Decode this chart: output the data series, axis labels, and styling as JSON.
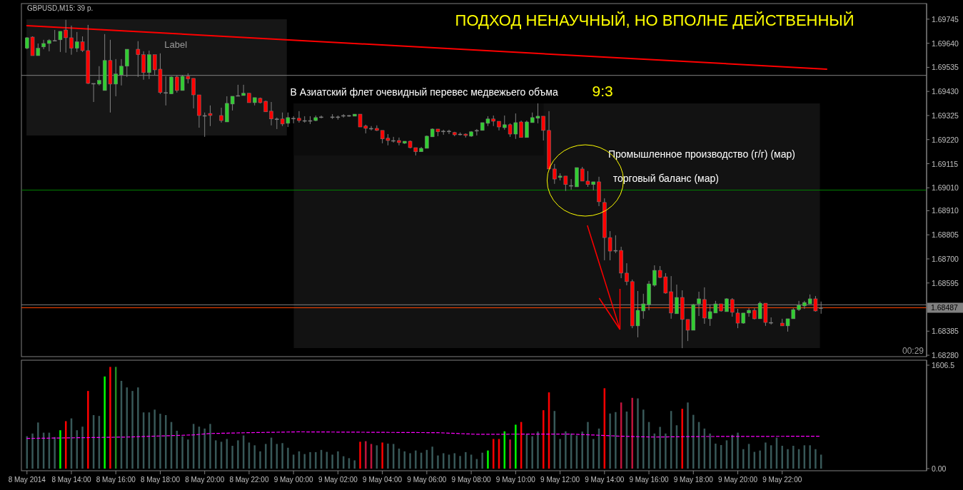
{
  "chart_data": [
    {
      "type": "candlestick",
      "title": "ПОДХОД НЕНАУЧНЫЙ, НО ВПОЛНЕ ДЕЙСТВЕННЫЙ",
      "subtitle": "GBPUSD,M15:  39 p.",
      "annotations": [
        "Label",
        "В Азиатский флет очевидный перевес медвежьего объма",
        "9:3",
        "Промышленное производство (г/г) (мар)",
        "торговый баланс (мар)",
        "00:29"
      ],
      "x": [
        "2014-05-08T12:00",
        "2014-05-08T12:15",
        "2014-05-08T12:30",
        "2014-05-08T12:45",
        "2014-05-08T13:00",
        "2014-05-08T13:15",
        "2014-05-08T13:30",
        "2014-05-08T13:45",
        "2014-05-08T14:00",
        "2014-05-08T14:15",
        "2014-05-08T14:30",
        "2014-05-08T14:45",
        "2014-05-08T15:00",
        "2014-05-08T15:15",
        "2014-05-08T15:30",
        "2014-05-08T15:45",
        "2014-05-08T16:00",
        "2014-05-08T16:15",
        "2014-05-08T16:30",
        "2014-05-08T17:00",
        "2014-05-08T17:15",
        "2014-05-08T17:30",
        "2014-05-08T17:45",
        "2014-05-08T18:00",
        "2014-05-08T18:15",
        "2014-05-08T18:30",
        "2014-05-08T18:45",
        "2014-05-08T19:00",
        "2014-05-08T19:15",
        "2014-05-08T19:30",
        "2014-05-08T19:45",
        "2014-05-08T20:00",
        "2014-05-08T20:15",
        "2014-05-08T20:45",
        "2014-05-08T21:00",
        "2014-05-08T21:15",
        "2014-05-08T21:30",
        "2014-05-08T21:45",
        "2014-05-08T22:00",
        "2014-05-08T22:15",
        "2014-05-08T22:30",
        "2014-05-08T22:45",
        "2014-05-08T23:00",
        "2014-05-08T23:15",
        "2014-05-08T23:30",
        "2014-05-08T23:45",
        "2014-05-09T00:00",
        "2014-05-09T00:15",
        "2014-05-09T00:30",
        "2014-05-09T00:45",
        "2014-05-09T01:00",
        "2014-05-09T01:15",
        "2014-05-09T01:45",
        "2014-05-09T02:00",
        "2014-05-09T02:15",
        "2014-05-09T02:30",
        "2014-05-09T02:45",
        "2014-05-09T03:00",
        "2014-05-09T03:15",
        "2014-05-09T03:30",
        "2014-05-09T03:45",
        "2014-05-09T04:00",
        "2014-05-09T04:15",
        "2014-05-09T04:30",
        "2014-05-09T04:45",
        "2014-05-09T05:00",
        "2014-05-09T05:15",
        "2014-05-09T05:30",
        "2014-05-09T05:45",
        "2014-05-09T06:00",
        "2014-05-09T06:15",
        "2014-05-09T06:30",
        "2014-05-09T06:45",
        "2014-05-09T07:00",
        "2014-05-09T07:15",
        "2014-05-09T07:30",
        "2014-05-09T07:45",
        "2014-05-09T08:00",
        "2014-05-09T08:15",
        "2014-05-09T08:30",
        "2014-05-09T08:45",
        "2014-05-09T09:00",
        "2014-05-09T09:15",
        "2014-05-09T09:30",
        "2014-05-09T09:45",
        "2014-05-09T10:00",
        "2014-05-09T10:15",
        "2014-05-09T10:30",
        "2014-05-09T10:45",
        "2014-05-09T11:00",
        "2014-05-09T11:15",
        "2014-05-09T11:30",
        "2014-05-09T11:45",
        "2014-05-09T12:00",
        "2014-05-09T12:15",
        "2014-05-09T12:30",
        "2014-05-09T12:45",
        "2014-05-09T13:00",
        "2014-05-09T13:15",
        "2014-05-09T13:30",
        "2014-05-09T13:45",
        "2014-05-09T14:00",
        "2014-05-09T14:15",
        "2014-05-09T14:30",
        "2014-05-09T14:45",
        "2014-05-09T15:00",
        "2014-05-09T15:15",
        "2014-05-09T15:30",
        "2014-05-09T15:45",
        "2014-05-09T16:00",
        "2014-05-09T16:15",
        "2014-05-09T16:30",
        "2014-05-09T16:45",
        "2014-05-09T17:00",
        "2014-05-09T17:15",
        "2014-05-09T17:30",
        "2014-05-09T17:45",
        "2014-05-09T18:00",
        "2014-05-09T18:15",
        "2014-05-09T18:30",
        "2014-05-09T18:45",
        "2014-05-09T19:00",
        "2014-05-09T19:15",
        "2014-05-09T19:30",
        "2014-05-09T19:45",
        "2014-05-09T20:00",
        "2014-05-09T20:15",
        "2014-05-09T20:30",
        "2014-05-09T20:45",
        "2014-05-09T21:00",
        "2014-05-09T21:15",
        "2014-05-09T21:30",
        "2014-05-09T22:00",
        "2014-05-09T22:15",
        "2014-05-09T22:30",
        "2014-05-09T22:45",
        "2014-05-09T23:00",
        "2014-05-09T23:15",
        "2014-05-09T23:30",
        "2014-05-09T23:45"
      ],
      "ohlc": [
        [
          1.69618,
          1.69667,
          1.69614,
          1.69664
        ],
        [
          1.69667,
          1.6967,
          1.69586,
          1.69586
        ],
        [
          1.69586,
          1.69639,
          1.69586,
          1.69618
        ],
        [
          1.69624,
          1.69655,
          1.69614,
          1.69639
        ],
        [
          1.69639,
          1.69658,
          1.69605,
          1.69652
        ],
        [
          1.69652,
          1.69698,
          1.69649,
          1.69652
        ],
        [
          1.69655,
          1.69692,
          1.69602,
          1.69692
        ],
        [
          1.69698,
          1.69742,
          1.69599,
          1.69664
        ],
        [
          1.69664,
          1.69717,
          1.6959,
          1.69618
        ],
        [
          1.69618,
          1.69689,
          1.69602,
          1.69646
        ],
        [
          1.69646,
          1.6967,
          1.69602,
          1.69608
        ],
        [
          1.69608,
          1.6972,
          1.69462,
          1.69465
        ],
        [
          1.69465,
          1.69465,
          1.69384,
          1.69465
        ],
        [
          1.69462,
          1.6954,
          1.69456,
          1.69478
        ],
        [
          1.69434,
          1.6968,
          1.69434,
          1.69565
        ],
        [
          1.69565,
          1.69655,
          1.69338,
          1.69462
        ],
        [
          1.69462,
          1.69571,
          1.69409,
          1.69506
        ],
        [
          1.69502,
          1.69571,
          1.69456,
          1.6954
        ],
        [
          1.6954,
          1.69614,
          1.69493,
          1.69614
        ],
        [
          1.69614,
          1.69649,
          1.69493,
          1.6959
        ],
        [
          1.6959,
          1.69605,
          1.69481,
          1.69512
        ],
        [
          1.69512,
          1.69608,
          1.69484,
          1.6959
        ],
        [
          1.6959,
          1.6959,
          1.69502,
          1.69524
        ],
        [
          1.69527,
          1.69596,
          1.69419,
          1.69425
        ],
        [
          1.69425,
          1.69496,
          1.69369,
          1.69425
        ],
        [
          1.69419,
          1.69496,
          1.69419,
          1.69493
        ],
        [
          1.69493,
          1.69499,
          1.69425,
          1.69434
        ],
        [
          1.69434,
          1.69502,
          1.69434,
          1.69496
        ],
        [
          1.69496,
          1.69509,
          1.69465,
          1.69484
        ],
        [
          1.69487,
          1.69487,
          1.69356,
          1.69415
        ],
        [
          1.69415,
          1.69415,
          1.69272,
          1.69325
        ],
        [
          1.69325,
          1.69338,
          1.69232,
          1.69325
        ],
        [
          1.69334,
          1.69369,
          1.69279,
          1.69325
        ],
        [
          1.69325,
          1.69359,
          1.69294,
          1.69303
        ],
        [
          1.69297,
          1.69409,
          1.69297,
          1.69378
        ],
        [
          1.69375,
          1.69409,
          1.69347,
          1.69409
        ],
        [
          1.69412,
          1.69459,
          1.69409,
          1.69412
        ],
        [
          1.69412,
          1.69459,
          1.69412,
          1.69422
        ],
        [
          1.69422,
          1.69422,
          1.69381,
          1.69381
        ],
        [
          1.69381,
          1.69403,
          1.69369,
          1.69403
        ],
        [
          1.694,
          1.69403,
          1.69378,
          1.69381
        ],
        [
          1.69387,
          1.6939,
          1.69341,
          1.69341
        ],
        [
          1.69344,
          1.69384,
          1.69282,
          1.6931
        ],
        [
          1.6931,
          1.69316,
          1.69266,
          1.6931
        ],
        [
          1.6931,
          1.69338,
          1.69279,
          1.69288
        ],
        [
          1.69291,
          1.69338,
          1.69275,
          1.69316
        ],
        [
          1.69313,
          1.69322,
          1.69291,
          1.69313
        ],
        [
          1.69313,
          1.69344,
          1.69294,
          1.69303
        ],
        [
          1.69303,
          1.69322,
          1.69294,
          1.69303
        ],
        [
          1.69303,
          1.69322,
          1.69288,
          1.69303
        ],
        [
          1.69303,
          1.69325,
          1.693,
          1.69316
        ],
        [
          1.69319,
          1.69325,
          1.69313,
          1.69319
        ],
        [
          1.69319,
          1.69331,
          1.6931,
          1.69319
        ],
        [
          1.69319,
          1.69325,
          1.69307,
          1.69319
        ],
        [
          1.69325,
          1.69331,
          1.69316,
          1.69325
        ],
        [
          1.69325,
          1.69328,
          1.69319,
          1.69325
        ],
        [
          1.69322,
          1.69331,
          1.69322,
          1.69331
        ],
        [
          1.69331,
          1.69331,
          1.69275,
          1.69275
        ],
        [
          1.69279,
          1.69285,
          1.69247,
          1.69269
        ],
        [
          1.69269,
          1.69279,
          1.6926,
          1.69269
        ],
        [
          1.69269,
          1.69282,
          1.69257,
          1.6926
        ],
        [
          1.6926,
          1.6926,
          1.69204,
          1.69223
        ],
        [
          1.69226,
          1.69244,
          1.69195,
          1.69216
        ],
        [
          1.69216,
          1.69232,
          1.69207,
          1.69216
        ],
        [
          1.69216,
          1.69229,
          1.69195,
          1.69207
        ],
        [
          1.69204,
          1.69213,
          1.69201,
          1.69213
        ],
        [
          1.69213,
          1.69216,
          1.69182,
          1.69185
        ],
        [
          1.69185,
          1.69185,
          1.69151,
          1.69167
        ],
        [
          1.69167,
          1.69188,
          1.69167,
          1.69182
        ],
        [
          1.69182,
          1.69238,
          1.69182,
          1.69235
        ],
        [
          1.69232,
          1.69269,
          1.69232,
          1.69266
        ],
        [
          1.69266,
          1.69266,
          1.69235,
          1.69254
        ],
        [
          1.69257,
          1.69263,
          1.69241,
          1.69257
        ],
        [
          1.69257,
          1.69263,
          1.69244,
          1.69257
        ],
        [
          1.69251,
          1.69254,
          1.69235,
          1.69241
        ],
        [
          1.69244,
          1.69251,
          1.69238,
          1.69244
        ],
        [
          1.69244,
          1.69247,
          1.69229,
          1.69238
        ],
        [
          1.69235,
          1.69257,
          1.69232,
          1.69254
        ],
        [
          1.6926,
          1.69266,
          1.69238,
          1.6926
        ],
        [
          1.6926,
          1.69294,
          1.6926,
          1.69294
        ],
        [
          1.69291,
          1.69322,
          1.69279,
          1.6931
        ],
        [
          1.6931,
          1.69325,
          1.69279,
          1.693
        ],
        [
          1.693,
          1.693,
          1.6926,
          1.69275
        ],
        [
          1.69272,
          1.69325,
          1.69263,
          1.69285
        ],
        [
          1.69285,
          1.69291,
          1.69232,
          1.69244
        ],
        [
          1.69244,
          1.69334,
          1.69223,
          1.69294
        ],
        [
          1.69297,
          1.69303,
          1.69229,
          1.69229
        ],
        [
          1.69229,
          1.69303,
          1.69229,
          1.69297
        ],
        [
          1.69294,
          1.69338,
          1.69294,
          1.69316
        ],
        [
          1.69313,
          1.69378,
          1.69291,
          1.69322
        ],
        [
          1.69322,
          1.69322,
          1.69216,
          1.6926
        ],
        [
          1.6926,
          1.69344,
          1.69092,
          1.69092
        ],
        [
          1.69092,
          1.69114,
          1.69027,
          1.69048
        ],
        [
          1.69055,
          1.69073,
          1.69042,
          1.69061
        ],
        [
          1.69061,
          1.69061,
          1.68996,
          1.69024
        ],
        [
          1.6902,
          1.69048,
          1.69002,
          1.6902
        ],
        [
          1.69014,
          1.69098,
          1.69014,
          1.69098
        ],
        [
          1.69092,
          1.69101,
          1.69039,
          1.69039
        ],
        [
          1.69039,
          1.69083,
          1.69014,
          1.69024
        ],
        [
          1.69024,
          1.69036,
          1.68999,
          1.69036
        ],
        [
          1.69036,
          1.69058,
          1.6893,
          1.68949
        ],
        [
          1.68946,
          1.68964,
          1.68694,
          1.68793
        ],
        [
          1.68793,
          1.68821,
          1.68694,
          1.68734
        ],
        [
          1.68737,
          1.68803,
          1.68725,
          1.68737
        ],
        [
          1.68737,
          1.68753,
          1.68616,
          1.68638
        ],
        [
          1.68638,
          1.68681,
          1.68585,
          1.68601
        ],
        [
          1.68601,
          1.6861,
          1.68398,
          1.68408
        ],
        [
          1.68408,
          1.6856,
          1.68358,
          1.68476
        ],
        [
          1.68473,
          1.68548,
          1.68439,
          1.68504
        ],
        [
          1.68501,
          1.68604,
          1.68476,
          1.68591
        ],
        [
          1.68585,
          1.68672,
          1.68579,
          1.6865
        ],
        [
          1.6865,
          1.68669,
          1.68616,
          1.68619
        ],
        [
          1.68622,
          1.68638,
          1.68548,
          1.68551
        ],
        [
          1.68557,
          1.68625,
          1.68439,
          1.68464
        ],
        [
          1.68461,
          1.68588,
          1.68461,
          1.68532
        ],
        [
          1.68532,
          1.68563,
          1.68311,
          1.68436
        ],
        [
          1.68436,
          1.68436,
          1.68342,
          1.68389
        ],
        [
          1.68389,
          1.68504,
          1.68389,
          1.68501
        ],
        [
          1.68504,
          1.68557,
          1.68451,
          1.68526
        ],
        [
          1.68523,
          1.68576,
          1.68417,
          1.68442
        ],
        [
          1.68439,
          1.68501,
          1.68408,
          1.6847
        ],
        [
          1.68464,
          1.68517,
          1.68464,
          1.68504
        ],
        [
          1.68504,
          1.68504,
          1.6847,
          1.68473
        ],
        [
          1.6847,
          1.68529,
          1.6847,
          1.68526
        ],
        [
          1.68523,
          1.68529,
          1.68448,
          1.68467
        ],
        [
          1.68464,
          1.68482,
          1.68398,
          1.6842
        ],
        [
          1.6842,
          1.68464,
          1.68417,
          1.68464
        ],
        [
          1.68464,
          1.68485,
          1.68448,
          1.68476
        ],
        [
          1.68476,
          1.68485,
          1.68436,
          1.68439
        ],
        [
          1.68439,
          1.68514,
          1.68439,
          1.68507
        ],
        [
          1.68507,
          1.68507,
          1.68408,
          1.68423
        ],
        [
          1.68423,
          1.68445,
          1.68414,
          1.68423
        ],
        [
          1.6842,
          1.68439,
          1.68408,
          1.68408
        ],
        [
          1.68408,
          1.68439,
          1.68383,
          1.68439
        ],
        [
          1.68439,
          1.68485,
          1.68439,
          1.68479
        ],
        [
          1.68479,
          1.68517,
          1.68473,
          1.68498
        ],
        [
          1.68495,
          1.68517,
          1.68482,
          1.6851
        ],
        [
          1.68504,
          1.68545,
          1.68504,
          1.68526
        ],
        [
          1.68526,
          1.68538,
          1.6847,
          1.68473
        ],
        [
          1.68487,
          1.68514,
          1.68461,
          1.68487
        ]
      ],
      "colors": [
        "#32cd32",
        "#ff0000",
        "#32cd32",
        "#32cd32",
        "#32cd32",
        "#808080",
        "#32cd32",
        "#ff0000",
        "#ff0000",
        "#32cd32",
        "#ff0000",
        "#ff0000",
        "#808080",
        "#32cd32",
        "#32cd32",
        "#ff0000",
        "#32cd32",
        "#32cd32",
        "#32cd32",
        "#ff0000",
        "#ff0000",
        "#32cd32",
        "#ff0000",
        "#ff0000",
        "#808080",
        "#32cd32",
        "#ff0000",
        "#32cd32",
        "#ff0000",
        "#ff0000",
        "#ff0000",
        "#808080",
        "#ff0000",
        "#ff0000",
        "#32cd32",
        "#32cd32",
        "#808080",
        "#32cd32",
        "#ff0000",
        "#32cd32",
        "#ff0000",
        "#ff0000",
        "#ff0000",
        "#808080",
        "#ff0000",
        "#32cd32",
        "#808080",
        "#ff0000",
        "#808080",
        "#808080",
        "#32cd32",
        "#808080",
        "#808080",
        "#808080",
        "#808080",
        "#808080",
        "#32cd32",
        "#ff0000",
        "#ff0000",
        "#808080",
        "#ff0000",
        "#ff0000",
        "#ff0000",
        "#808080",
        "#ff0000",
        "#32cd32",
        "#ff0000",
        "#ff0000",
        "#32cd32",
        "#32cd32",
        "#32cd32",
        "#ff0000",
        "#808080",
        "#808080",
        "#ff0000",
        "#808080",
        "#ff0000",
        "#32cd32",
        "#808080",
        "#32cd32",
        "#32cd32",
        "#ff0000",
        "#ff0000",
        "#32cd32",
        "#ff0000",
        "#32cd32",
        "#ff0000",
        "#32cd32",
        "#32cd32",
        "#32cd32",
        "#ff0000",
        "#ff0000",
        "#ff0000",
        "#32cd32",
        "#ff0000",
        "#808080",
        "#32cd32",
        "#ff0000",
        "#ff0000",
        "#32cd32",
        "#ff0000",
        "#ff0000",
        "#ff0000",
        "#808080",
        "#ff0000",
        "#ff0000",
        "#ff0000",
        "#32cd32",
        "#32cd32",
        "#32cd32",
        "#32cd32",
        "#ff0000",
        "#ff0000",
        "#ff0000",
        "#32cd32",
        "#ff0000",
        "#ff0000",
        "#32cd32",
        "#32cd32",
        "#ff0000",
        "#32cd32",
        "#32cd32",
        "#ff0000",
        "#32cd32",
        "#ff0000",
        "#ff0000",
        "#32cd32",
        "#32cd32",
        "#ff0000",
        "#32cd32",
        "#ff0000",
        "#808080",
        "#ff0000",
        "#32cd32",
        "#32cd32",
        "#32cd32",
        "#32cd32",
        "#32cd32",
        "#ff0000",
        "#808080"
      ],
      "series": [
        {
          "type": "line",
          "x": [
            "2014-05-08T12:00",
            "2014-05-10T00:00"
          ],
          "values": [
            1.69717,
            1.69527
          ],
          "color": "#ff0000"
        }
      ],
      "ref_lines": [
        {
          "axis": "y",
          "value": 1.695,
          "color": "#808080"
        },
        {
          "axis": "y",
          "value": 1.69,
          "color": "#008000"
        },
        {
          "axis": "y",
          "value": 1.685,
          "color": "#808080"
        },
        {
          "axis": "y",
          "value": 1.68487,
          "label": "1.68487",
          "color": "#ff4500"
        }
      ],
      "xlim": [
        "2014-05-08T11:45",
        "2014-05-10T04:30"
      ],
      "ylim": [
        1.68274,
        1.69813
      ],
      "yticks": [
        1.69745,
        {
          "value": 1.6964,
          "label": "1.69640"
        },
        1.69535,
        {
          "value": 1.6943,
          "label": "1.69430"
        },
        1.69325,
        {
          "value": 1.6922,
          "label": "1.69220"
        },
        1.69115,
        {
          "value": 1.6901,
          "label": "1.69010"
        },
        {
          "value": 1.6891,
          "label": "1.68910"
        },
        1.68805,
        {
          "value": 1.687,
          "label": "1.68700"
        },
        1.68595,
        1.68385,
        {
          "value": 1.6828,
          "label": "1.68280"
        }
      ],
      "tick_labels": "y"
    },
    {
      "type": "bar",
      "x": [
        "2014-05-08T12:00",
        "2014-05-08T12:15",
        "2014-05-08T12:30",
        "2014-05-08T12:45",
        "2014-05-08T13:00",
        "2014-05-08T13:15",
        "2014-05-08T13:30",
        "2014-05-08T13:45",
        "2014-05-08T14:00",
        "2014-05-08T14:15",
        "2014-05-08T14:30",
        "2014-05-08T14:45",
        "2014-05-08T15:00",
        "2014-05-08T15:15",
        "2014-05-08T15:30",
        "2014-05-08T15:45",
        "2014-05-08T16:00",
        "2014-05-08T16:15",
        "2014-05-08T16:30",
        "2014-05-08T16:45",
        "2014-05-08T17:00",
        "2014-05-08T17:15",
        "2014-05-08T17:30",
        "2014-05-08T17:45",
        "2014-05-08T18:00",
        "2014-05-08T18:15",
        "2014-05-08T18:30",
        "2014-05-08T18:45",
        "2014-05-08T19:00",
        "2014-05-08T19:15",
        "2014-05-08T19:30",
        "2014-05-08T19:45",
        "2014-05-08T20:00",
        "2014-05-08T20:15",
        "2014-05-08T20:30",
        "2014-05-08T20:45",
        "2014-05-08T21:00",
        "2014-05-08T21:15",
        "2014-05-08T21:30",
        "2014-05-08T21:45",
        "2014-05-08T22:00",
        "2014-05-08T22:15",
        "2014-05-08T22:30",
        "2014-05-08T22:45",
        "2014-05-08T23:00",
        "2014-05-08T23:15",
        "2014-05-08T23:30",
        "2014-05-08T23:45",
        "2014-05-09T00:00",
        "2014-05-09T00:15",
        "2014-05-09T00:30",
        "2014-05-09T00:45",
        "2014-05-09T01:00",
        "2014-05-09T01:15",
        "2014-05-09T01:30",
        "2014-05-09T01:45",
        "2014-05-09T02:00",
        "2014-05-09T02:15",
        "2014-05-09T02:30",
        "2014-05-09T02:45",
        "2014-05-09T03:00",
        "2014-05-09T03:15",
        "2014-05-09T03:30",
        "2014-05-09T03:45",
        "2014-05-09T04:00",
        "2014-05-09T04:15",
        "2014-05-09T04:30",
        "2014-05-09T04:45",
        "2014-05-09T05:00",
        "2014-05-09T05:15",
        "2014-05-09T05:30",
        "2014-05-09T05:45",
        "2014-05-09T06:00",
        "2014-05-09T06:15",
        "2014-05-09T06:30",
        "2014-05-09T06:45",
        "2014-05-09T07:00",
        "2014-05-09T07:15",
        "2014-05-09T07:30",
        "2014-05-09T07:45",
        "2014-05-09T08:00",
        "2014-05-09T08:15",
        "2014-05-09T08:30",
        "2014-05-09T08:45",
        "2014-05-09T09:00",
        "2014-05-09T09:15",
        "2014-05-09T09:30",
        "2014-05-09T09:45",
        "2014-05-09T10:00",
        "2014-05-09T10:15",
        "2014-05-09T10:30",
        "2014-05-09T10:45",
        "2014-05-09T11:00",
        "2014-05-09T11:15",
        "2014-05-09T11:30",
        "2014-05-09T11:45",
        "2014-05-09T12:00",
        "2014-05-09T12:15",
        "2014-05-09T12:30",
        "2014-05-09T12:45",
        "2014-05-09T13:00",
        "2014-05-09T13:15",
        "2014-05-09T13:30",
        "2014-05-09T13:45",
        "2014-05-09T14:00",
        "2014-05-09T14:15",
        "2014-05-09T14:30",
        "2014-05-09T14:45",
        "2014-05-09T15:00",
        "2014-05-09T15:15",
        "2014-05-09T15:30",
        "2014-05-09T15:45",
        "2014-05-09T16:00",
        "2014-05-09T16:15",
        "2014-05-09T16:30",
        "2014-05-09T16:45",
        "2014-05-09T17:00",
        "2014-05-09T17:15",
        "2014-05-09T17:30",
        "2014-05-09T17:45",
        "2014-05-09T18:00",
        "2014-05-09T18:15",
        "2014-05-09T18:30",
        "2014-05-09T18:45",
        "2014-05-09T19:00",
        "2014-05-09T19:15",
        "2014-05-09T19:30",
        "2014-05-09T19:45",
        "2014-05-09T20:00",
        "2014-05-09T20:15",
        "2014-05-09T20:30",
        "2014-05-09T20:45",
        "2014-05-09T21:00",
        "2014-05-09T21:15",
        "2014-05-09T21:30",
        "2014-05-09T21:45",
        "2014-05-09T22:00",
        "2014-05-09T22:15",
        "2014-05-09T22:30",
        "2014-05-09T22:45",
        "2014-05-09T23:00",
        "2014-05-09T23:15",
        "2014-05-09T23:30",
        "2014-05-09T23:45"
      ],
      "series": [
        {
          "values": [
            503,
            545,
            716,
            558,
            558,
            490,
            596,
            737,
            780,
            596,
            652,
            1206,
            831,
            818,
            1431,
            1580,
            1580,
            1363,
            1261,
            1206,
            1261,
            873,
            873,
            916,
            852,
            831,
            724,
            588,
            503,
            452,
            694,
            652,
            622,
            694,
            439,
            417,
            460,
            354,
            439,
            515,
            405,
            362,
            268,
            383,
            481,
            383,
            396,
            324,
            217,
            268,
            226,
            256,
            256,
            290,
            260,
            217,
            268,
            192,
            162,
            128,
            417,
            426,
            383,
            362,
            405,
            388,
            383,
            311,
            268,
            239,
            281,
            247,
            290,
            341,
            204,
            239,
            217,
            239,
            196,
            256,
            217,
            149,
            247,
            281,
            460,
            460,
            579,
            452,
            682,
            724,
            533,
            503,
            575,
            907,
            1184,
            895,
            460,
            579,
            545,
            515,
            575,
            724,
            460,
            622,
            1248,
            856,
            878,
            1027,
            886,
            1099,
            1091,
            916,
            724,
            545,
            648,
            545,
            895,
            673,
            929,
            1027,
            835,
            724,
            622,
            545,
            388,
            366,
            439,
            524,
            558,
            302,
            383,
            260,
            281,
            405,
            362,
            481,
            354,
            302,
            354,
            302,
            362,
            362,
            302,
            217
          ],
          "colors": [
            "#385858",
            "#385858",
            "#385858",
            "#385858",
            "#385858",
            "#385858",
            "#00ff00",
            "#ff0000",
            "#385858",
            "#385858",
            "#385858",
            "#ff0000",
            "#385858",
            "#385858",
            "#00ff00",
            "#ff0000",
            "#228b22",
            "#385858",
            "#385858",
            "#385858",
            "#385858",
            "#385858",
            "#385858",
            "#385858",
            "#385858",
            "#385858",
            "#385858",
            "#385858",
            "#385858",
            "#385858",
            "#385858",
            "#385858",
            "#385858",
            "#385858",
            "#385858",
            "#385858",
            "#385858",
            "#385858",
            "#385858",
            "#385858",
            "#385858",
            "#385858",
            "#385858",
            "#385858",
            "#385858",
            "#385858",
            "#385858",
            "#385858",
            "#385858",
            "#385858",
            "#385858",
            "#385858",
            "#385858",
            "#385858",
            "#385858",
            "#385858",
            "#385858",
            "#385858",
            "#385858",
            "#385858",
            "#ff0000",
            "#c0143c",
            "#c0143c",
            "#385858",
            "#ff0000",
            "#385858",
            "#385858",
            "#385858",
            "#385858",
            "#385858",
            "#385858",
            "#385858",
            "#385858",
            "#385858",
            "#385858",
            "#385858",
            "#385858",
            "#385858",
            "#385858",
            "#385858",
            "#385858",
            "#385858",
            "#385858",
            "#00ff00",
            "#ff0000",
            "#ff0000",
            "#00ff00",
            "#c0143c",
            "#00ff00",
            "#ff0000",
            "#385858",
            "#385858",
            "#385858",
            "#ff0000",
            "#ff0000",
            "#385858",
            "#385858",
            "#385858",
            "#385858",
            "#385858",
            "#385858",
            "#385858",
            "#385858",
            "#385858",
            "#ff0000",
            "#385858",
            "#385858",
            "#c0143c",
            "#385858",
            "#c0143c",
            "#385858",
            "#385858",
            "#385858",
            "#385858",
            "#385858",
            "#385858",
            "#385858",
            "#385858",
            "#ff0000",
            "#385858",
            "#385858",
            "#385858",
            "#385858",
            "#385858",
            "#385858",
            "#385858",
            "#385858",
            "#385858",
            "#385858",
            "#385858",
            "#385858",
            "#385858",
            "#385858",
            "#385858",
            "#385858",
            "#385858",
            "#385858",
            "#385858",
            "#385858",
            "#385858",
            "#385858",
            "#385858",
            "#385858",
            "#385858"
          ]
        },
        {
          "type": "line",
          "x": [
            "2014-05-08T12:00",
            "2014-05-08T16:30",
            "2014-05-08T19:30",
            "2014-05-08T20:15",
            "2014-05-08T22:00",
            "2014-05-09T00:15",
            "2014-05-09T06:30",
            "2014-05-09T08:15",
            "2014-05-09T12:30",
            "2014-05-09T14:45",
            "2014-05-09T16:15",
            "2014-05-09T18:00",
            "2014-05-09T23:45"
          ],
          "values": [
            469,
            490,
            524,
            545,
            558,
            571,
            558,
            533,
            537,
            503,
            490,
            498,
            503
          ],
          "color": "#ff00ff",
          "line_style": "dashed"
        }
      ],
      "xlim": [
        "2014-05-08T11:45",
        "2014-05-10T04:30"
      ],
      "ylim": [
        0,
        1606.5
      ],
      "yticks": [
        {
          "value": 0,
          "label": "0.00"
        },
        1606.5
      ],
      "xticks": [
        {
          "value": "2014-05-08T12:00",
          "label": "8 May 2014"
        },
        {
          "value": "2014-05-08T14:00",
          "label": "8 May 14:00"
        },
        {
          "value": "2014-05-08T16:00",
          "label": "8 May 16:00"
        },
        {
          "value": "2014-05-08T18:00",
          "label": "8 May 18:00"
        },
        {
          "value": "2014-05-08T20:00",
          "label": "8 May 20:00"
        },
        {
          "value": "2014-05-08T22:00",
          "label": "8 May 22:00"
        },
        {
          "value": "2014-05-09T00:00",
          "label": "9 May 00:00"
        },
        {
          "value": "2014-05-09T02:00",
          "label": "9 May 02:00"
        },
        {
          "value": "2014-05-09T04:00",
          "label": "9 May 04:00"
        },
        {
          "value": "2014-05-09T06:00",
          "label": "9 May 06:00"
        },
        {
          "value": "2014-05-09T08:00",
          "label": "9 May 08:00"
        },
        {
          "value": "2014-05-09T10:00",
          "label": "9 May 10:00"
        },
        {
          "value": "2014-05-09T12:00",
          "label": "9 May 12:00"
        },
        {
          "value": "2014-05-09T14:00",
          "label": "9 May 14:00"
        },
        {
          "value": "2014-05-09T16:00",
          "label": "9 May 16:00"
        },
        {
          "value": "2014-05-09T18:00",
          "label": "9 May 18:00"
        },
        {
          "value": "2014-05-09T20:00",
          "label": "9 May 20:00"
        },
        {
          "value": "2014-05-09T22:00",
          "label": "9 May 22:00"
        }
      ]
    }
  ]
}
